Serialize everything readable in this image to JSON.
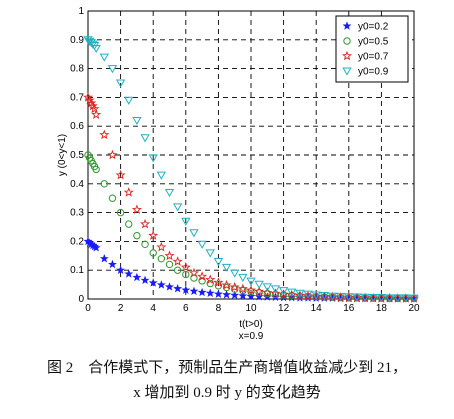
{
  "chart_data": {
    "type": "scatter",
    "title": "",
    "xlabel": "t(t>0)",
    "xlabel_note": "x=0.9",
    "ylabel": "y (0<y<1)",
    "xlim": [
      0,
      20
    ],
    "ylim": [
      0,
      1
    ],
    "xticks": [
      0,
      2,
      4,
      6,
      8,
      10,
      12,
      14,
      16,
      18,
      20
    ],
    "yticks": [
      0,
      0.1,
      0.2,
      0.3,
      0.4,
      0.5,
      0.6,
      0.7,
      0.8,
      0.9,
      1
    ],
    "ytick_labels": [
      "0",
      "0.1",
      "0.2",
      "0.3",
      "0.4",
      "0.5",
      "0.6",
      "0.7",
      "0.8",
      "0.9",
      "1"
    ],
    "grid": true,
    "legend_position": "top-right",
    "x": [
      0,
      0.1,
      0.2,
      0.3,
      0.4,
      0.5,
      1,
      1.5,
      2,
      2.5,
      3,
      3.5,
      4,
      4.5,
      5,
      5.5,
      6,
      6.5,
      7,
      7.5,
      8,
      8.5,
      9,
      9.5,
      10,
      10.5,
      11,
      11.5,
      12,
      12.5,
      13,
      13.5,
      14,
      14.5,
      15,
      15.5,
      16,
      16.5,
      17,
      17.5,
      18,
      18.5,
      19,
      19.5,
      20
    ],
    "series": [
      {
        "name": "y0=0.2",
        "marker": "star-filled",
        "color": "#1a1aff",
        "values": [
          0.2,
          0.194,
          0.19,
          0.186,
          0.182,
          0.178,
          0.14,
          0.12,
          0.1,
          0.087,
          0.075,
          0.065,
          0.056,
          0.049,
          0.042,
          0.036,
          0.031,
          0.027,
          0.023,
          0.02,
          0.017,
          0.015,
          0.013,
          0.011,
          0.009,
          0.008,
          0.007,
          0.006,
          0.005,
          0.005,
          0.004,
          0.004,
          0.003,
          0.003,
          0.003,
          0.002,
          0.002,
          0.002,
          0.002,
          0.002,
          0.001,
          0.001,
          0.001,
          0.001,
          0.001
        ]
      },
      {
        "name": "y0=0.5",
        "marker": "circle-open",
        "color": "#2e9a2e",
        "values": [
          0.5,
          0.49,
          0.48,
          0.47,
          0.46,
          0.45,
          0.4,
          0.35,
          0.3,
          0.26,
          0.22,
          0.19,
          0.16,
          0.14,
          0.12,
          0.1,
          0.085,
          0.073,
          0.063,
          0.054,
          0.046,
          0.04,
          0.034,
          0.029,
          0.025,
          0.022,
          0.019,
          0.016,
          0.014,
          0.012,
          0.01,
          0.009,
          0.008,
          0.007,
          0.006,
          0.005,
          0.004,
          0.004,
          0.003,
          0.003,
          0.003,
          0.002,
          0.002,
          0.002,
          0.002
        ]
      },
      {
        "name": "y0=0.7",
        "marker": "star-open",
        "color": "#e02020",
        "values": [
          0.7,
          0.69,
          0.68,
          0.67,
          0.66,
          0.64,
          0.57,
          0.5,
          0.43,
          0.37,
          0.31,
          0.26,
          0.22,
          0.18,
          0.15,
          0.13,
          0.11,
          0.09,
          0.078,
          0.067,
          0.057,
          0.048,
          0.041,
          0.035,
          0.03,
          0.026,
          0.022,
          0.019,
          0.016,
          0.014,
          0.012,
          0.01,
          0.009,
          0.008,
          0.007,
          0.006,
          0.005,
          0.004,
          0.004,
          0.003,
          0.003,
          0.003,
          0.002,
          0.002,
          0.002
        ]
      },
      {
        "name": "y0=0.9",
        "marker": "triangle-down-open",
        "color": "#20b0c0",
        "values": [
          0.9,
          0.895,
          0.89,
          0.885,
          0.88,
          0.87,
          0.84,
          0.8,
          0.75,
          0.69,
          0.62,
          0.56,
          0.49,
          0.43,
          0.37,
          0.32,
          0.27,
          0.23,
          0.19,
          0.16,
          0.13,
          0.11,
          0.09,
          0.075,
          0.062,
          0.051,
          0.042,
          0.035,
          0.029,
          0.024,
          0.02,
          0.017,
          0.014,
          0.012,
          0.01,
          0.009,
          0.008,
          0.007,
          0.006,
          0.005,
          0.005,
          0.004,
          0.004,
          0.004,
          0.003
        ]
      }
    ]
  },
  "caption": {
    "line1": "图 2　合作模式下，预制品生产商增值收益减少到 21，",
    "line2": "x 增加到 0.9 时 y 的变化趋势"
  }
}
